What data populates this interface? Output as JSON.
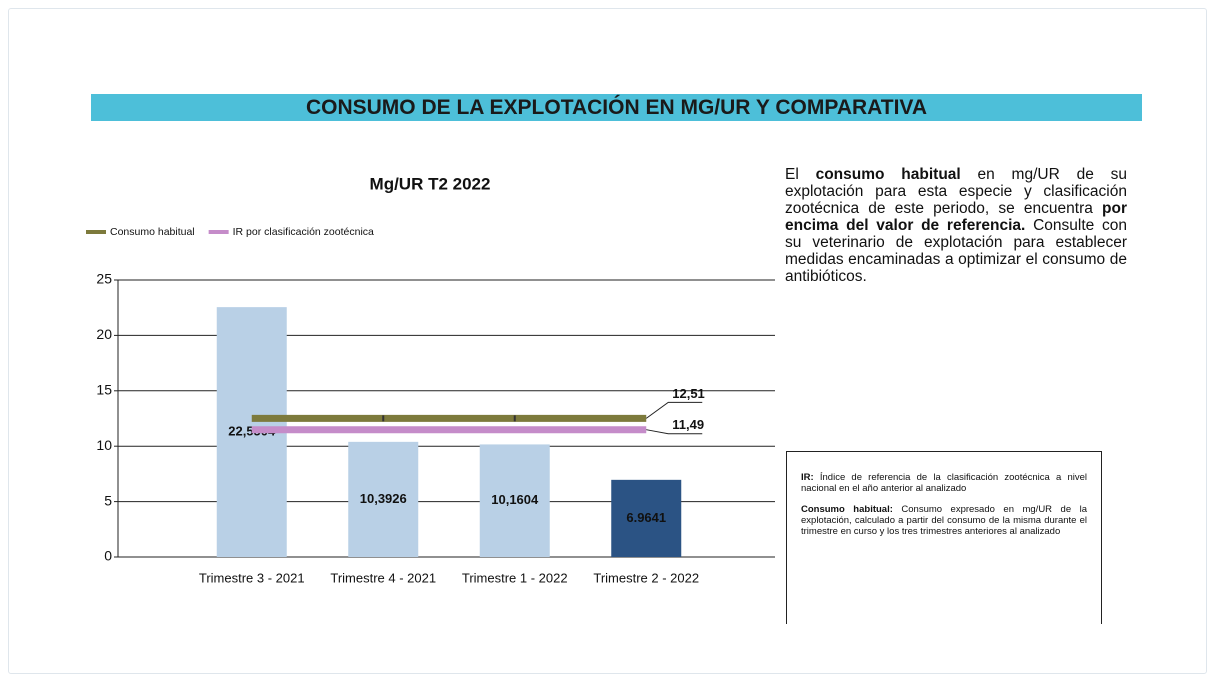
{
  "header": {
    "title": "CONSUMO DE LA EXPLOTACIÓN EN MG/UR Y COMPARATIVA"
  },
  "chart_data": {
    "type": "bar",
    "title": "Mg/UR T2 2022",
    "categories": [
      "Trimestre 3 - 2021",
      "Trimestre 4 - 2021",
      "Trimestre 1 - 2022",
      "Trimestre 2 - 2022"
    ],
    "values": [
      22.5504,
      10.3926,
      10.1604,
      6.9641
    ],
    "value_labels": [
      "22,5504",
      "10,3926",
      "10,1604",
      "6.9641"
    ],
    "colors": [
      "#b9d0e6",
      "#b9d0e6",
      "#b9d0e6",
      "#2b5384"
    ],
    "series": [
      {
        "name": "Consumo habitual",
        "color": "#7d7a3c",
        "values": [
          12.51,
          12.51,
          12.51,
          12.51
        ],
        "value_labels": [
          null,
          null,
          null,
          "12,51"
        ]
      },
      {
        "name": "IR por clasificación zootécnica",
        "color": "#c58cc9",
        "values": [
          11.49,
          11.49,
          11.49,
          11.49
        ],
        "value_labels": [
          null,
          null,
          null,
          "11,49"
        ]
      }
    ],
    "ylim": [
      0,
      25
    ],
    "yticks": [
      0,
      5,
      10,
      15,
      20,
      25
    ],
    "grid": true,
    "legend": "top-left"
  },
  "description": {
    "segments": [
      {
        "text": "El ",
        "bold": false
      },
      {
        "text": "consumo habitual",
        "bold": true
      },
      {
        "text": " en mg/UR de su explotación para esta especie y clasificación zootécnica de este periodo, se encuentra ",
        "bold": false
      },
      {
        "text": "por encima del valor de referencia.",
        "bold": true
      },
      {
        "text": " Consulte con su veterinario de explotación para establecer medidas encaminadas a optimizar el consumo de antibióticos.",
        "bold": false
      }
    ]
  },
  "notes": [
    {
      "term": "IR:",
      "text": "Índice de referencia de la clasificación zootécnica a nivel nacional en el año anterior al analizado"
    },
    {
      "term": "Consumo habitual:",
      "text": "Consumo expresado en mg/UR de la explotación, calculado a partir del consumo de la misma durante el trimestre en curso y los tres trimestres anteriores al analizado"
    }
  ]
}
